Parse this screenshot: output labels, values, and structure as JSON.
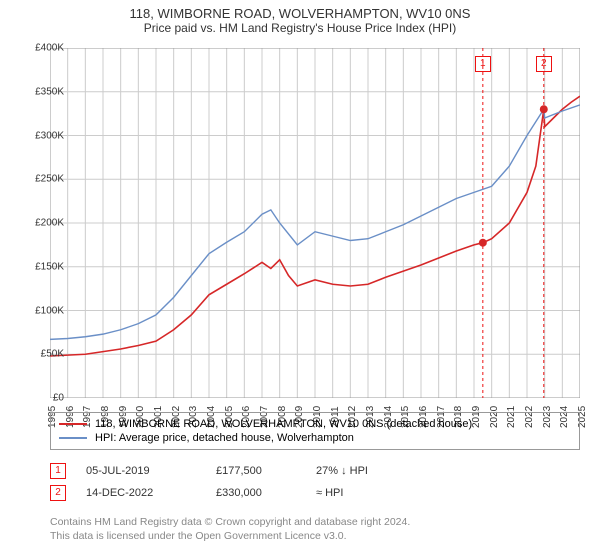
{
  "title": "118, WIMBORNE ROAD, WOLVERHAMPTON, WV10 0NS",
  "subtitle": "Price paid vs. HM Land Registry's House Price Index (HPI)",
  "chart": {
    "type": "line",
    "background_color": "#ffffff",
    "grid_color": "#cccccc",
    "x": {
      "min": 1995,
      "max": 2025,
      "ticks": [
        1995,
        1996,
        1997,
        1998,
        1999,
        2000,
        2001,
        2002,
        2003,
        2004,
        2005,
        2006,
        2007,
        2008,
        2009,
        2010,
        2011,
        2012,
        2013,
        2014,
        2015,
        2016,
        2017,
        2018,
        2019,
        2020,
        2021,
        2022,
        2023,
        2024,
        2025
      ]
    },
    "y": {
      "min": 0,
      "max": 400000,
      "ticks": [
        0,
        50000,
        100000,
        150000,
        200000,
        250000,
        300000,
        350000,
        400000
      ],
      "labels": [
        "£0",
        "£50K",
        "£100K",
        "£150K",
        "£200K",
        "£250K",
        "£300K",
        "£350K",
        "£400K"
      ]
    },
    "series": [
      {
        "name": "price_paid",
        "label": "118, WIMBORNE ROAD, WOLVERHAMPTON, WV10 0NS (detached house)",
        "color": "#d62728",
        "width": 1.6,
        "data": [
          [
            1995,
            48000
          ],
          [
            1996,
            49000
          ],
          [
            1997,
            50000
          ],
          [
            1998,
            53000
          ],
          [
            1999,
            56000
          ],
          [
            2000,
            60000
          ],
          [
            2001,
            65000
          ],
          [
            2002,
            78000
          ],
          [
            2003,
            95000
          ],
          [
            2004,
            118000
          ],
          [
            2005,
            130000
          ],
          [
            2006,
            142000
          ],
          [
            2007,
            155000
          ],
          [
            2007.5,
            148000
          ],
          [
            2008,
            158000
          ],
          [
            2008.5,
            140000
          ],
          [
            2009,
            128000
          ],
          [
            2010,
            135000
          ],
          [
            2011,
            130000
          ],
          [
            2012,
            128000
          ],
          [
            2013,
            130000
          ],
          [
            2014,
            138000
          ],
          [
            2015,
            145000
          ],
          [
            2016,
            152000
          ],
          [
            2017,
            160000
          ],
          [
            2018,
            168000
          ],
          [
            2019,
            175000
          ],
          [
            2019.5,
            177500
          ],
          [
            2020,
            182000
          ],
          [
            2021,
            200000
          ],
          [
            2022,
            235000
          ],
          [
            2022.5,
            265000
          ],
          [
            2022.95,
            330000
          ],
          [
            2023,
            310000
          ],
          [
            2023.5,
            320000
          ],
          [
            2024,
            330000
          ],
          [
            2024.5,
            338000
          ],
          [
            2025,
            345000
          ]
        ]
      },
      {
        "name": "hpi",
        "label": "HPI: Average price, detached house, Wolverhampton",
        "color": "#6a8fc7",
        "width": 1.4,
        "data": [
          [
            1995,
            67000
          ],
          [
            1996,
            68000
          ],
          [
            1997,
            70000
          ],
          [
            1998,
            73000
          ],
          [
            1999,
            78000
          ],
          [
            2000,
            85000
          ],
          [
            2001,
            95000
          ],
          [
            2002,
            115000
          ],
          [
            2003,
            140000
          ],
          [
            2004,
            165000
          ],
          [
            2005,
            178000
          ],
          [
            2006,
            190000
          ],
          [
            2007,
            210000
          ],
          [
            2007.5,
            215000
          ],
          [
            2008,
            200000
          ],
          [
            2009,
            175000
          ],
          [
            2010,
            190000
          ],
          [
            2011,
            185000
          ],
          [
            2012,
            180000
          ],
          [
            2013,
            182000
          ],
          [
            2014,
            190000
          ],
          [
            2015,
            198000
          ],
          [
            2016,
            208000
          ],
          [
            2017,
            218000
          ],
          [
            2018,
            228000
          ],
          [
            2019,
            235000
          ],
          [
            2020,
            242000
          ],
          [
            2021,
            265000
          ],
          [
            2022,
            300000
          ],
          [
            2022.95,
            330000
          ],
          [
            2023,
            320000
          ],
          [
            2024,
            328000
          ],
          [
            2025,
            335000
          ]
        ]
      }
    ],
    "vlines": [
      {
        "x": 2019.5,
        "color": "#e11",
        "dash": true
      },
      {
        "x": 2022.95,
        "color": "#e11",
        "dash": true
      }
    ],
    "points": [
      {
        "x": 2019.5,
        "y": 177500,
        "color": "#d62728"
      },
      {
        "x": 2022.95,
        "y": 330000,
        "color": "#d62728"
      }
    ],
    "markers": [
      {
        "n": "1",
        "x": 2019.5
      },
      {
        "n": "2",
        "x": 2022.95
      }
    ]
  },
  "legend": [
    {
      "color": "#d62728",
      "label": "118, WIMBORNE ROAD, WOLVERHAMPTON, WV10 0NS (detached house)"
    },
    {
      "color": "#6a8fc7",
      "label": "HPI: Average price, detached house, Wolverhampton"
    }
  ],
  "transactions": [
    {
      "n": "1",
      "date": "05-JUL-2019",
      "price": "£177,500",
      "delta": "27% ↓ HPI"
    },
    {
      "n": "2",
      "date": "14-DEC-2022",
      "price": "£330,000",
      "delta": "≈ HPI"
    }
  ],
  "footer_line1": "Contains HM Land Registry data © Crown copyright and database right 2024.",
  "footer_line2": "This data is licensed under the Open Government Licence v3.0."
}
